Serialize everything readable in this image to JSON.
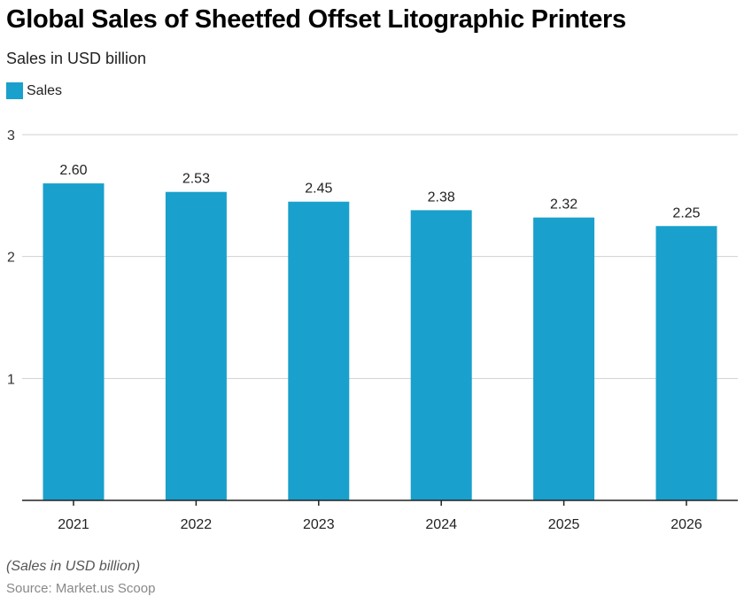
{
  "chart_data": {
    "type": "bar",
    "title": "Global Sales of Sheetfed Offset Litographic Printers",
    "subtitle": "Sales in USD billion",
    "categories": [
      "2021",
      "2022",
      "2023",
      "2024",
      "2025",
      "2026"
    ],
    "series": [
      {
        "name": "Sales",
        "values": [
          2.6,
          2.53,
          2.45,
          2.38,
          2.32,
          2.25
        ],
        "labels": [
          "2.60",
          "2.53",
          "2.45",
          "2.38",
          "2.32",
          "2.25"
        ]
      }
    ],
    "xlabel": "",
    "ylabel": "",
    "ylim": [
      0,
      3
    ],
    "yticks": [
      1,
      2,
      3
    ],
    "ytick_labels": [
      "1",
      "2",
      "3"
    ],
    "grid": true,
    "legend_position": "top-left",
    "bar_color": "#1aa0cc",
    "note": "(Sales in USD billion)",
    "source": "Source: Market.us Scoop"
  }
}
